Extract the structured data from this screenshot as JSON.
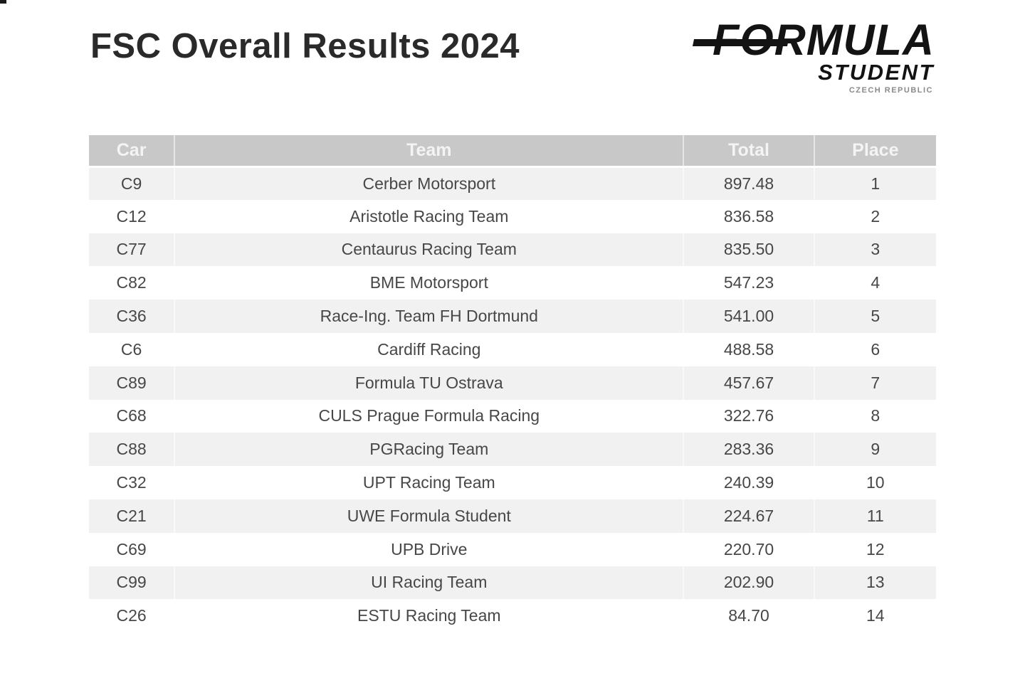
{
  "page": {
    "title": "FSC Overall Results 2024"
  },
  "logo": {
    "formula": "FORMULA",
    "student": "STUDENT",
    "country": "CZECH REPUBLIC"
  },
  "results_table": {
    "columns": [
      "Car",
      "Team",
      "Total",
      "Place"
    ],
    "rows": [
      {
        "car": "C9",
        "team": "Cerber Motorsport",
        "total": "897.48",
        "place": "1"
      },
      {
        "car": "C12",
        "team": "Aristotle Racing Team",
        "total": "836.58",
        "place": "2"
      },
      {
        "car": "C77",
        "team": "Centaurus Racing Team",
        "total": "835.50",
        "place": "3"
      },
      {
        "car": "C82",
        "team": "BME Motorsport",
        "total": "547.23",
        "place": "4"
      },
      {
        "car": "C36",
        "team": "Race-Ing. Team FH Dortmund",
        "total": "541.00",
        "place": "5"
      },
      {
        "car": "C6",
        "team": "Cardiff Racing",
        "total": "488.58",
        "place": "6"
      },
      {
        "car": "C89",
        "team": "Formula TU Ostrava",
        "total": "457.67",
        "place": "7"
      },
      {
        "car": "C68",
        "team": "CULS Prague Formula Racing",
        "total": "322.76",
        "place": "8"
      },
      {
        "car": "C88",
        "team": "PGRacing Team",
        "total": "283.36",
        "place": "9"
      },
      {
        "car": "C32",
        "team": "UPT Racing Team",
        "total": "240.39",
        "place": "10"
      },
      {
        "car": "C21",
        "team": "UWE Formula Student",
        "total": "224.67",
        "place": "11"
      },
      {
        "car": "C69",
        "team": "UPB Drive",
        "total": "220.70",
        "place": "12"
      },
      {
        "car": "C99",
        "team": "UI Racing Team",
        "total": "202.90",
        "place": "13"
      },
      {
        "car": "C26",
        "team": "ESTU Racing Team",
        "total": "84.70",
        "place": "14"
      }
    ]
  },
  "colors": {
    "page_bg": "#ffffff",
    "header_bg": "#c8c8c8",
    "header_text": "#f4f4f4",
    "row_stripe": "#f1f1f1",
    "body_text": "#474747",
    "title_text": "#2a2a2a",
    "logo_text": "#131313",
    "logo_country_text": "#8a8a8a"
  }
}
